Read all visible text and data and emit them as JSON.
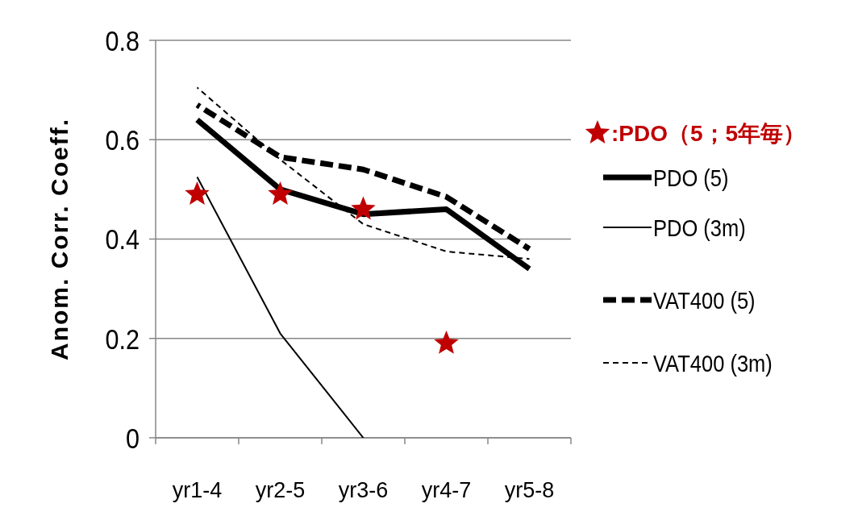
{
  "chart_data": {
    "type": "line",
    "ylabel": "Anom. Corr. Coeff.",
    "categories": [
      "yr1-4",
      "yr2-5",
      "yr3-6",
      "yr4-7",
      "yr5-8"
    ],
    "ylim": [
      0,
      0.8
    ],
    "yticks": [
      0,
      0.2,
      0.4,
      0.6,
      0.8
    ],
    "grid": "y",
    "legend": "right",
    "marker": "none",
    "series": [
      {
        "name": "PDO (5)",
        "color": "#000000",
        "line_style": "solid",
        "values": [
          0.64,
          0.5,
          0.45,
          0.46,
          0.34
        ]
      },
      {
        "name": "PDO (3m)",
        "color": "#000000",
        "line_style": "solid",
        "values": [
          0.525,
          0.21,
          0.0,
          null,
          null
        ]
      },
      {
        "name": "VAT400 (5)",
        "color": "#000000",
        "line_style": "dashed",
        "values": [
          0.67,
          0.565,
          0.54,
          0.485,
          0.38
        ]
      },
      {
        "name": "VAT400 (3m)",
        "color": "#000000",
        "line_style": "dashed",
        "values": [
          0.705,
          0.56,
          0.43,
          0.375,
          0.36
        ]
      },
      {
        "name": ":PDO（5；5年毎）",
        "type": "scatter",
        "marker": "star",
        "color": "#c00000",
        "values": [
          0.49,
          0.49,
          0.46,
          0.19,
          null
        ]
      }
    ]
  }
}
